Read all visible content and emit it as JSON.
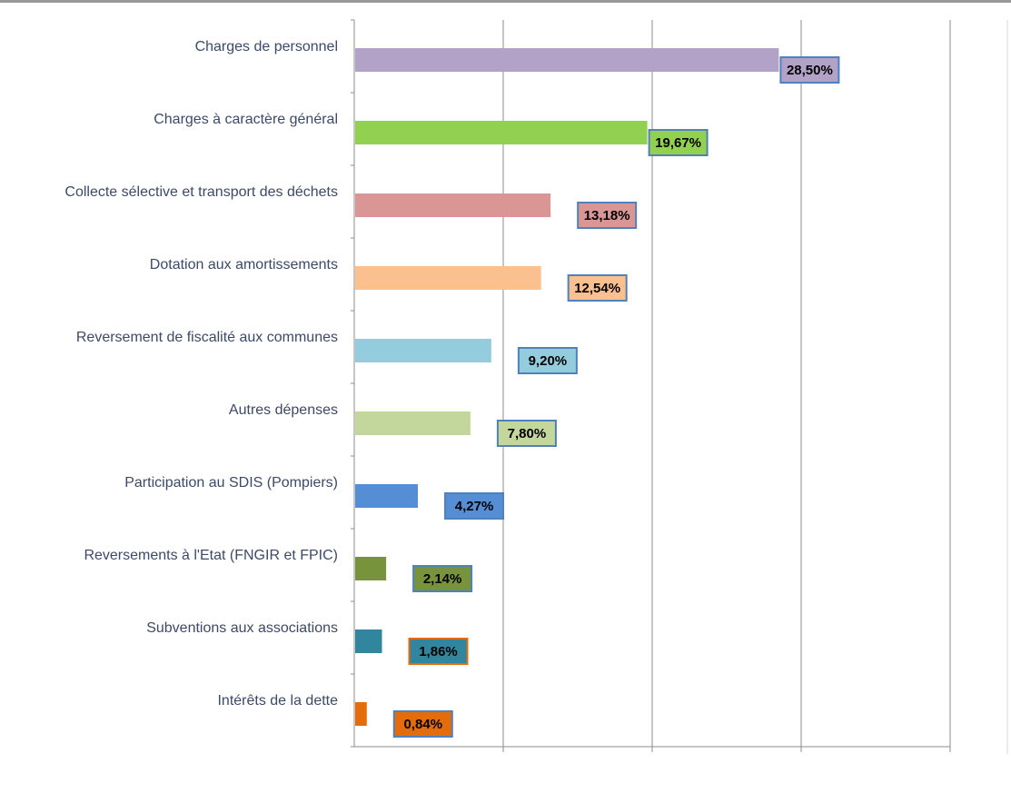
{
  "chart_data": {
    "type": "bar",
    "orientation": "horizontal",
    "title": "",
    "xlabel": "",
    "ylabel": "",
    "xlim": [
      0,
      0.4
    ],
    "grid": "vertical",
    "legend": "none",
    "categories": [
      "Charges de personnel",
      "Charges à caractère général",
      "Collecte sélective et transport des déchets",
      "Dotation aux amortissements",
      "Reversement de fiscalité aux communes",
      "Autres dépenses",
      "Participation au SDIS (Pompiers)",
      "Reversements à l'Etat (FNGIR et FPIC)",
      "Subventions aux associations",
      "Intérêts de la dette"
    ],
    "values": [
      0.285,
      0.1967,
      0.1318,
      0.1254,
      0.092,
      0.078,
      0.0427,
      0.0214,
      0.0186,
      0.0084
    ],
    "labels": [
      "28,50%",
      "19,67%",
      "13,18%",
      "12,54%",
      "9,20%",
      "7,80%",
      "4,27%",
      "2,14%",
      "1,86%",
      "0,84%"
    ],
    "colors": [
      "#b3a2c7",
      "#92d050",
      "#d99694",
      "#fac090",
      "#93cddd",
      "#c3d69b",
      "#558ed5",
      "#77933c",
      "#31859c",
      "#e46c0a"
    ],
    "label_box_colors": [
      "#b3a2c7",
      "#92d050",
      "#d99694",
      "#fac090",
      "#93cddd",
      "#c3d69b",
      "#558ed5",
      "#77933c",
      "#31859c",
      "#e46c0a"
    ],
    "label_border_colors": [
      "#4f81bd",
      "#4f81bd",
      "#4f81bd",
      "#4f81bd",
      "#4f81bd",
      "#4f81bd",
      "#4f81bd",
      "#4f81bd",
      "#e46c0a",
      "#4f81bd"
    ]
  }
}
